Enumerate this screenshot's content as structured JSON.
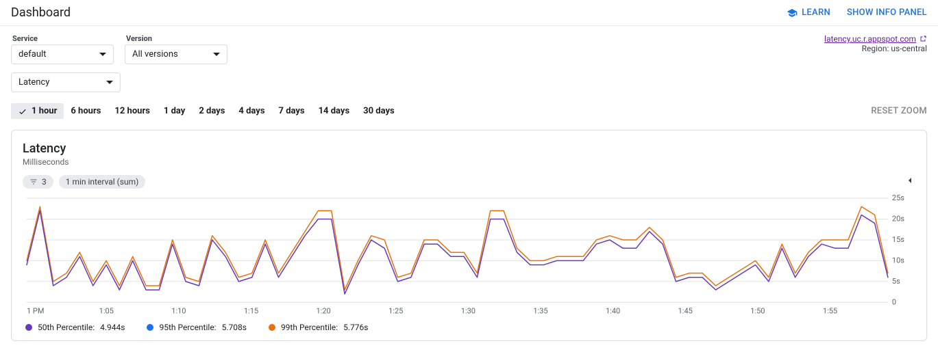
{
  "header": {
    "title": "Dashboard",
    "learn_label": "Learn",
    "info_panel_label": "Show Info Panel"
  },
  "filters": {
    "service_label": "Service",
    "service_value": "default",
    "version_label": "Version",
    "version_value": "All versions"
  },
  "app_link": {
    "url_text": "latency.uc.r.appspot.com",
    "region_text": "Region: us-central"
  },
  "metric_select": {
    "value": "Latency"
  },
  "time_ranges": {
    "options": [
      "1 hour",
      "6 hours",
      "12 hours",
      "1 day",
      "2 days",
      "4 days",
      "7 days",
      "14 days",
      "30 days"
    ],
    "active_index": 0,
    "reset_label": "Reset Zoom"
  },
  "chart": {
    "title": "Latency",
    "subtitle": "Milliseconds",
    "filter_chip_count": "3",
    "interval_chip": "1 min interval (sum)",
    "y": {
      "min": 0,
      "max": 25,
      "tick_step": 5,
      "unit_suffix": "s"
    },
    "x_labels": [
      "1 PM",
      "1:05",
      "1:10",
      "1:15",
      "1:20",
      "1:25",
      "1:30",
      "1:35",
      "1:40",
      "1:45",
      "1:50",
      "1:55"
    ],
    "colors": {
      "p50": "#673ab7",
      "p95": "#1a73e8",
      "p99": "#e8710a",
      "grid": "#e0e0e0",
      "axis_text": "#5f6368",
      "background": "#ffffff"
    },
    "line_width": 1.5,
    "series": {
      "p50": [
        9,
        22,
        4,
        6,
        11,
        4,
        9,
        3,
        10,
        3,
        3,
        14,
        5,
        4,
        15,
        11,
        5,
        6,
        14,
        6,
        11,
        16,
        20,
        20,
        2,
        9,
        15,
        13,
        5,
        6,
        14,
        14,
        11,
        11,
        6,
        20,
        20,
        12,
        9,
        9,
        10,
        10,
        10,
        14,
        15,
        13,
        13,
        17,
        14,
        5,
        6,
        6,
        3,
        5,
        7,
        9,
        5,
        13,
        6,
        11,
        14,
        13,
        13,
        21,
        19,
        6
      ],
      "p99": [
        10,
        23,
        5,
        7,
        12,
        5,
        10,
        4,
        11,
        4,
        4,
        15,
        6,
        5,
        16,
        12,
        6,
        7,
        15,
        7,
        12,
        17,
        22,
        22,
        3,
        10,
        16,
        15,
        6,
        7,
        15,
        15,
        12,
        12,
        7,
        22,
        22,
        13,
        10,
        10,
        11,
        11,
        11,
        15,
        16,
        15,
        15,
        18,
        15,
        6,
        7,
        7,
        4,
        6,
        8,
        10,
        6,
        14,
        7,
        12,
        15,
        15,
        15,
        23,
        21,
        7
      ]
    },
    "legend": [
      {
        "label": "50th Percentile:",
        "value": "4.944s",
        "color_key": "p50"
      },
      {
        "label": "95th Percentile:",
        "value": "5.708s",
        "color_key": "p95"
      },
      {
        "label": "99th Percentile:",
        "value": "5.776s",
        "color_key": "p99"
      }
    ]
  }
}
